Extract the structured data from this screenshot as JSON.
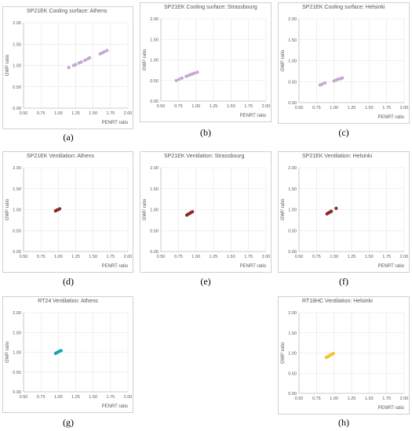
{
  "chart_data": [
    {
      "id": "a",
      "type": "scatter",
      "title": "SP21EK Cooling surface: Athens",
      "xlabel": "PENRT ratio",
      "ylabel": "GWP ratio",
      "xlim": [
        0.5,
        2.0
      ],
      "ylim": [
        0.0,
        2.0
      ],
      "xticks": [
        "0.50",
        "0.75",
        "1.00",
        "1.25",
        "1.50",
        "1.75",
        "2.00"
      ],
      "yticks": [
        "0.00",
        "0.50",
        "1.00",
        "1.50",
        "2.00"
      ],
      "color": "#c5a6d4",
      "caption": "(a)",
      "points": [
        [
          1.15,
          0.95
        ],
        [
          1.22,
          1.0
        ],
        [
          1.25,
          1.02
        ],
        [
          1.3,
          1.06
        ],
        [
          1.33,
          1.08
        ],
        [
          1.38,
          1.12
        ],
        [
          1.42,
          1.15
        ],
        [
          1.45,
          1.18
        ],
        [
          1.6,
          1.27
        ],
        [
          1.63,
          1.29
        ],
        [
          1.66,
          1.32
        ],
        [
          1.7,
          1.35
        ]
      ]
    },
    {
      "id": "b",
      "type": "scatter",
      "title": "SP21EK Cooling surface: Strassbourg",
      "xlabel": "PENRT ratio",
      "ylabel": "GWP ratio",
      "xlim": [
        0.5,
        2.0
      ],
      "ylim": [
        0.0,
        2.0
      ],
      "xticks": [
        "0.50",
        "0.75",
        "1.00",
        "1.25",
        "1.50",
        "1.75",
        "2.00"
      ],
      "yticks": [
        "0.00",
        "0.50",
        "1.00",
        "1.50",
        "2.00"
      ],
      "color": "#c5a6d4",
      "caption": "(b)",
      "points": [
        [
          0.72,
          0.5
        ],
        [
          0.76,
          0.53
        ],
        [
          0.8,
          0.56
        ],
        [
          0.86,
          0.6
        ],
        [
          0.89,
          0.62
        ],
        [
          0.92,
          0.64
        ],
        [
          0.95,
          0.66
        ],
        [
          0.98,
          0.68
        ],
        [
          1.02,
          0.7
        ]
      ]
    },
    {
      "id": "c",
      "type": "scatter",
      "title": "SP21EK Cooling surface: Helsinki",
      "xlabel": "PENRT ratio",
      "ylabel": "GWP ratio",
      "xlim": [
        0.5,
        2.0
      ],
      "ylim": [
        0.0,
        2.0
      ],
      "xticks": [
        "0.50",
        "0.75",
        "1.00",
        "1.25",
        "1.50",
        "1.75",
        "2.00"
      ],
      "yticks": [
        "0.00",
        "0.50",
        "1.00",
        "1.50",
        "2.00"
      ],
      "color": "#c5a6d4",
      "caption": "(c)",
      "points": [
        [
          0.8,
          0.42
        ],
        [
          0.83,
          0.44
        ],
        [
          0.87,
          0.47
        ],
        [
          1.0,
          0.52
        ],
        [
          1.03,
          0.54
        ],
        [
          1.06,
          0.56
        ],
        [
          1.09,
          0.57
        ],
        [
          1.12,
          0.59
        ]
      ]
    },
    {
      "id": "d",
      "type": "scatter",
      "title": "SP21EK Ventilation: Athens",
      "xlabel": "PENRT ratio",
      "ylabel": "GWP ratio",
      "xlim": [
        0.5,
        2.0
      ],
      "ylim": [
        0.0,
        2.0
      ],
      "xticks": [
        "0.50",
        "0.75",
        "1.00",
        "1.25",
        "1.50",
        "1.75",
        "2.00"
      ],
      "yticks": [
        "0.00",
        "0.50",
        "1.00",
        "1.50",
        "2.00"
      ],
      "color": "#8b2a24",
      "caption": "(d)",
      "points": [
        [
          0.96,
          0.97
        ],
        [
          0.98,
          0.99
        ],
        [
          1.0,
          1.0
        ],
        [
          1.02,
          1.02
        ]
      ]
    },
    {
      "id": "e",
      "type": "scatter",
      "title": "SP21EK Ventilation: Strassbourg",
      "xlabel": "PENRT ratio",
      "ylabel": "GWP ratio",
      "xlim": [
        0.5,
        2.0
      ],
      "ylim": [
        0.0,
        2.0
      ],
      "xticks": [
        "0.50",
        "0.75",
        "1.00",
        "1.25",
        "1.50",
        "1.75",
        "2.00"
      ],
      "yticks": [
        "0.00",
        "0.50",
        "1.00",
        "1.50",
        "2.00"
      ],
      "color": "#8b2a24",
      "caption": "(e)",
      "points": [
        [
          0.87,
          0.87
        ],
        [
          0.89,
          0.89
        ],
        [
          0.91,
          0.91
        ],
        [
          0.93,
          0.93
        ],
        [
          0.95,
          0.95
        ]
      ]
    },
    {
      "id": "f",
      "type": "scatter",
      "title": "SP21EK Ventilation: Helsinki",
      "xlabel": "PENRT ratio",
      "ylabel": "GWP ratio",
      "xlim": [
        0.5,
        2.0
      ],
      "ylim": [
        0.0,
        2.0
      ],
      "xticks": [
        "0.50",
        "0.75",
        "1.00",
        "1.25",
        "1.50",
        "1.75",
        "2.00"
      ],
      "yticks": [
        "0.00",
        "0.50",
        "1.00",
        "1.50",
        "2.00"
      ],
      "color": "#8b2a24",
      "caption": "(f)",
      "points": [
        [
          0.9,
          0.9
        ],
        [
          0.92,
          0.92
        ],
        [
          0.94,
          0.94
        ],
        [
          0.96,
          0.96
        ],
        [
          1.03,
          1.03
        ]
      ]
    },
    {
      "id": "g",
      "type": "scatter",
      "title": "RT24 Ventilation: Athens",
      "xlabel": "PENRT ratio",
      "ylabel": "GWP ratio",
      "xlim": [
        0.5,
        2.0
      ],
      "ylim": [
        0.0,
        2.0
      ],
      "xticks": [
        "0.50",
        "0.75",
        "1.00",
        "1.25",
        "1.50",
        "1.75",
        "2.00"
      ],
      "yticks": [
        "0.00",
        "0.50",
        "1.00",
        "1.50",
        "2.00"
      ],
      "color": "#1aa3b8",
      "caption": "(g)",
      "points": [
        [
          0.96,
          0.97
        ],
        [
          0.98,
          0.99
        ],
        [
          1.0,
          1.01
        ],
        [
          1.02,
          1.03
        ],
        [
          1.04,
          1.04
        ]
      ]
    },
    {
      "id": "h",
      "type": "scatter",
      "title": "RT18HC Ventilation: Helsinki",
      "xlabel": "PENRT ratio",
      "ylabel": "GWP ratio",
      "xlim": [
        0.5,
        2.0
      ],
      "ylim": [
        0.0,
        2.0
      ],
      "xticks": [
        "0.50",
        "0.75",
        "1.00",
        "1.25",
        "1.50",
        "1.75",
        "2.00"
      ],
      "yticks": [
        "0.00",
        "0.50",
        "1.00",
        "1.50",
        "2.00"
      ],
      "color": "#f5c231",
      "caption": "(h)",
      "points": [
        [
          0.89,
          0.89
        ],
        [
          0.91,
          0.91
        ],
        [
          0.93,
          0.93
        ],
        [
          0.95,
          0.95
        ],
        [
          0.97,
          0.97
        ],
        [
          0.99,
          0.99
        ]
      ]
    }
  ]
}
